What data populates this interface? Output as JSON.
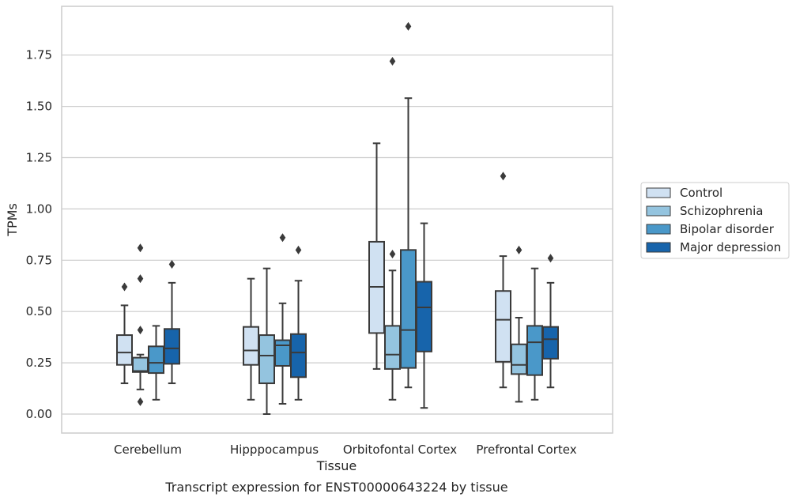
{
  "caption": "Transcript expression for ENST00000643224 by tissue",
  "chart_data": {
    "type": "box",
    "xlabel": "Tissue",
    "ylabel": "TPMs",
    "ylim": [
      -0.09,
      1.98
    ],
    "yticks": [
      0.0,
      0.25,
      0.5,
      0.75,
      1.0,
      1.25,
      1.5,
      1.75
    ],
    "ytick_labels": [
      "0.00",
      "0.25",
      "0.50",
      "0.75",
      "1.00",
      "1.25",
      "1.50",
      "1.75"
    ],
    "grid": "horizontal",
    "legend_position": "right",
    "categories": [
      "Cerebellum",
      "Hipppocampus",
      "Orbitofontal Cortex",
      "Prefrontal Cortex"
    ],
    "series": [
      {
        "name": "Control",
        "color": "#d0e1f2",
        "boxes": [
          {
            "whislo": 0.15,
            "q1": 0.24,
            "med": 0.3,
            "q3": 0.385,
            "whishi": 0.53,
            "fliers": [
              0.62
            ]
          },
          {
            "whislo": 0.07,
            "q1": 0.24,
            "med": 0.31,
            "q3": 0.425,
            "whishi": 0.66,
            "fliers": []
          },
          {
            "whislo": 0.22,
            "q1": 0.395,
            "med": 0.62,
            "q3": 0.84,
            "whishi": 1.32,
            "fliers": []
          },
          {
            "whislo": 0.13,
            "q1": 0.255,
            "med": 0.46,
            "q3": 0.6,
            "whishi": 0.77,
            "fliers": [
              1.16
            ]
          }
        ]
      },
      {
        "name": "Schizophrenia",
        "color": "#94c4df",
        "boxes": [
          {
            "whislo": 0.12,
            "q1": 0.205,
            "med": 0.21,
            "q3": 0.275,
            "whishi": 0.29,
            "fliers": [
              0.06,
              0.41,
              0.66,
              0.81
            ]
          },
          {
            "whislo": 0.0,
            "q1": 0.15,
            "med": 0.285,
            "q3": 0.385,
            "whishi": 0.71,
            "fliers": []
          },
          {
            "whislo": 0.07,
            "q1": 0.22,
            "med": 0.29,
            "q3": 0.43,
            "whishi": 0.7,
            "fliers": [
              0.78,
              1.72
            ]
          },
          {
            "whislo": 0.06,
            "q1": 0.195,
            "med": 0.24,
            "q3": 0.34,
            "whishi": 0.47,
            "fliers": [
              0.8
            ]
          }
        ]
      },
      {
        "name": "Bipolar disorder",
        "color": "#4a98c9",
        "boxes": [
          {
            "whislo": 0.07,
            "q1": 0.2,
            "med": 0.25,
            "q3": 0.33,
            "whishi": 0.43,
            "fliers": []
          },
          {
            "whislo": 0.05,
            "q1": 0.235,
            "med": 0.335,
            "q3": 0.36,
            "whishi": 0.54,
            "fliers": [
              0.86
            ]
          },
          {
            "whislo": 0.13,
            "q1": 0.225,
            "med": 0.41,
            "q3": 0.8,
            "whishi": 1.54,
            "fliers": [
              1.89
            ]
          },
          {
            "whislo": 0.07,
            "q1": 0.19,
            "med": 0.35,
            "q3": 0.43,
            "whishi": 0.71,
            "fliers": []
          }
        ]
      },
      {
        "name": "Major depression",
        "color": "#1764ab",
        "boxes": [
          {
            "whislo": 0.15,
            "q1": 0.245,
            "med": 0.32,
            "q3": 0.415,
            "whishi": 0.64,
            "fliers": [
              0.73
            ]
          },
          {
            "whislo": 0.07,
            "q1": 0.18,
            "med": 0.3,
            "q3": 0.39,
            "whishi": 0.65,
            "fliers": [
              0.8
            ]
          },
          {
            "whislo": 0.03,
            "q1": 0.305,
            "med": 0.52,
            "q3": 0.645,
            "whishi": 0.93,
            "fliers": []
          },
          {
            "whislo": 0.13,
            "q1": 0.27,
            "med": 0.365,
            "q3": 0.425,
            "whishi": 0.64,
            "fliers": [
              0.76
            ]
          }
        ]
      }
    ]
  }
}
